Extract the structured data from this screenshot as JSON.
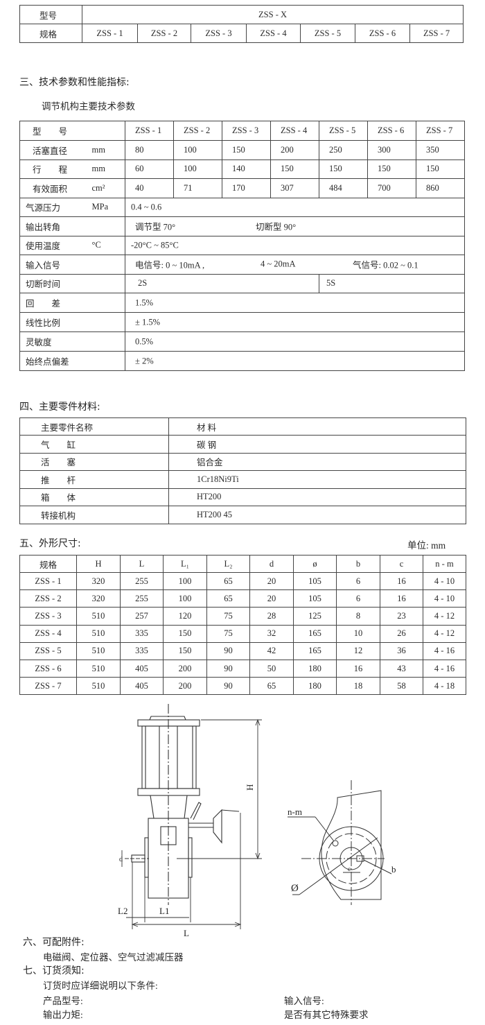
{
  "model_table": {
    "row1_label": "型号",
    "series": "ZSS - X",
    "row2_label": "规格",
    "specs": [
      "ZSS - 1",
      "ZSS - 2",
      "ZSS - 3",
      "ZSS - 4",
      "ZSS - 5",
      "ZSS - 6",
      "ZSS - 7"
    ]
  },
  "section3": {
    "heading": "三、技术参数和性能指标:",
    "subtitle": "调节机构主要技术参数",
    "rows": [
      {
        "label": "型　　号",
        "unit": "",
        "values": [
          "ZSS - 1",
          "ZSS - 2",
          "ZSS - 3",
          "ZSS - 4",
          "ZSS - 5",
          "ZSS - 6",
          "ZSS - 7"
        ]
      },
      {
        "label": "活塞直径",
        "unit": "mm",
        "values": [
          "80",
          "100",
          "150",
          "200",
          "250",
          "300",
          "350"
        ]
      },
      {
        "label": "行　　程",
        "unit": "mm",
        "values": [
          "60",
          "100",
          "140",
          "150",
          "150",
          "150",
          "150"
        ]
      },
      {
        "label": "有效面积",
        "unit": "cm²",
        "values": [
          "40",
          "71",
          "170",
          "307",
          "484",
          "700",
          "860"
        ]
      }
    ],
    "wide_rows": [
      {
        "label": "气源压力",
        "unit": "MPa",
        "parts": [
          "0.4 ~ 0.6"
        ]
      },
      {
        "label": "输出转角",
        "unit": "",
        "parts": [
          "调节型  70°",
          "切断型  90°"
        ]
      },
      {
        "label": "使用温度",
        "unit": "°C",
        "parts": [
          "-20°C ~ 85°C"
        ]
      },
      {
        "label": "输入信号",
        "unit": "",
        "parts": [
          "电信号: 0 ~ 10mA ,",
          "4 ~ 20mA",
          "气信号:  0.02 ~ 0.1"
        ]
      },
      {
        "label": "切断时间",
        "unit": "",
        "split": [
          "2S",
          "5S"
        ]
      },
      {
        "label": "回　　差",
        "unit": "",
        "parts": [
          "1.5%"
        ]
      },
      {
        "label": "线性比例",
        "unit": "",
        "parts": [
          "± 1.5%"
        ]
      },
      {
        "label": "灵敏度",
        "unit": "",
        "parts": [
          "0.5%"
        ]
      },
      {
        "label": "始终点偏差",
        "unit": "",
        "parts": [
          "± 2%"
        ]
      }
    ]
  },
  "section4": {
    "heading": "四、主要零件材料:",
    "header": [
      "主要零件名称",
      "材  料"
    ],
    "rows": [
      [
        "气　　缸",
        "碳  钢"
      ],
      [
        "活　　塞",
        "铝合金"
      ],
      [
        "推　　杆",
        "1Cr18Ni9Ti"
      ],
      [
        "箱　　体",
        "HT200"
      ],
      [
        "转接机构",
        "HT200   45"
      ]
    ]
  },
  "section5": {
    "heading": "五、外形尺寸:",
    "unit": "单位: mm",
    "header": [
      "规格",
      "H",
      "L",
      "L₁",
      "L₂",
      "d",
      "ø",
      "b",
      "c",
      "n - m"
    ],
    "rows": [
      [
        "ZSS - 1",
        "320",
        "255",
        "100",
        "65",
        "20",
        "105",
        "6",
        "16",
        "4 - 10"
      ],
      [
        "ZSS - 2",
        "320",
        "255",
        "100",
        "65",
        "20",
        "105",
        "6",
        "16",
        "4 - 10"
      ],
      [
        "ZSS - 3",
        "510",
        "257",
        "120",
        "75",
        "28",
        "125",
        "8",
        "23",
        "4 - 12"
      ],
      [
        "ZSS - 4",
        "510",
        "335",
        "150",
        "75",
        "32",
        "165",
        "10",
        "26",
        "4 - 12"
      ],
      [
        "ZSS - 5",
        "510",
        "335",
        "150",
        "90",
        "42",
        "165",
        "12",
        "36",
        "4 - 16"
      ],
      [
        "ZSS - 6",
        "510",
        "405",
        "200",
        "90",
        "50",
        "180",
        "16",
        "43",
        "4 - 16"
      ],
      [
        "ZSS - 7",
        "510",
        "405",
        "200",
        "90",
        "65",
        "180",
        "18",
        "58",
        "4 - 18"
      ]
    ]
  },
  "drawing": {
    "H": "H",
    "L": "L",
    "L1": "L1",
    "L2": "L2",
    "d": "d",
    "nm": "n-m",
    "b": "b",
    "phi": "Ø",
    "c": "c"
  },
  "section6": {
    "heading": "六、可配附件:",
    "text": "电磁阀、定位器、空气过滤减压器"
  },
  "section7": {
    "heading": "七、订货须知:",
    "intro": "订货时应详细说明以下条件:",
    "items": [
      "产品型号:",
      "输入信号:",
      "输出力矩:",
      "是否有其它特殊要求"
    ]
  }
}
